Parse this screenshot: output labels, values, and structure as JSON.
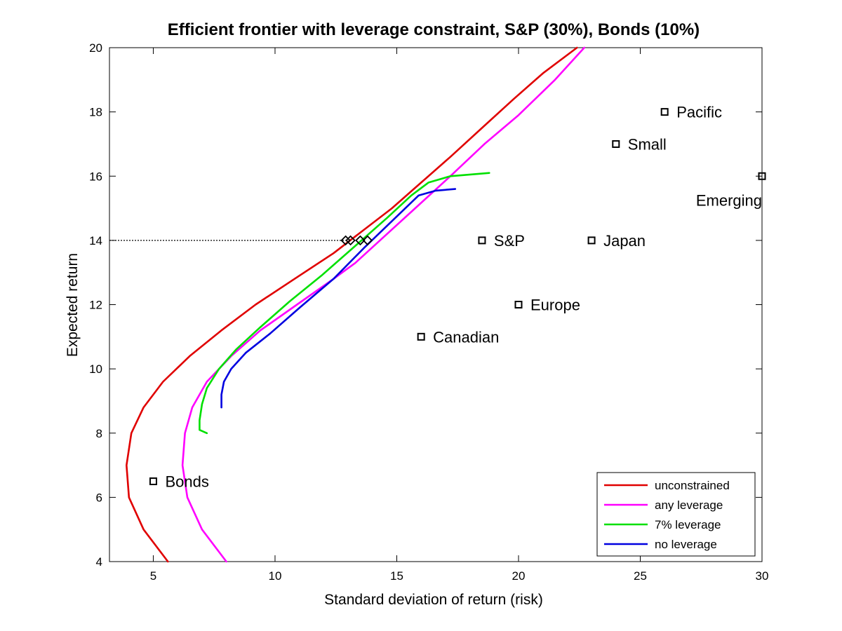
{
  "chart_data": {
    "type": "line",
    "title": "Efficient frontier with leverage constraint, S&P (30%), Bonds (10%)",
    "xlabel": "Standard deviation of return (risk)",
    "ylabel": "Expected return",
    "xlim": [
      3.2,
      30
    ],
    "ylim": [
      4,
      20
    ],
    "xticks": [
      5,
      10,
      15,
      20,
      25,
      30
    ],
    "yticks": [
      4,
      6,
      8,
      10,
      12,
      14,
      16,
      18,
      20
    ],
    "grid": false,
    "legend_position": "bottom-right",
    "target_return": 14,
    "series": [
      {
        "name": "unconstrained",
        "color": "#e00000",
        "x": [
          5.6,
          4.6,
          4.0,
          3.9,
          4.1,
          4.6,
          5.4,
          6.5,
          7.8,
          9.2,
          10.8,
          12.4,
          13.6,
          14.8,
          16.0,
          17.2,
          18.5,
          19.8,
          21.0,
          22.4
        ],
        "y": [
          4.0,
          5.0,
          6.0,
          7.0,
          8.0,
          8.8,
          9.6,
          10.4,
          11.2,
          12.0,
          12.8,
          13.6,
          14.3,
          15.0,
          15.8,
          16.6,
          17.5,
          18.4,
          19.2,
          20.0
        ]
      },
      {
        "name": "any leverage",
        "color": "#ff00ff",
        "x": [
          8.0,
          7.0,
          6.4,
          6.2,
          6.3,
          6.6,
          7.2,
          8.2,
          9.4,
          10.9,
          12.4,
          13.3,
          14.6,
          15.9,
          17.2,
          18.6,
          20.0,
          21.5,
          22.7
        ],
        "y": [
          4.0,
          5.0,
          6.0,
          7.0,
          8.0,
          8.8,
          9.6,
          10.4,
          11.2,
          12.0,
          12.8,
          13.3,
          14.2,
          15.1,
          16.0,
          17.0,
          17.9,
          19.0,
          20.0
        ]
      },
      {
        "name": "7% leverage",
        "color": "#00e000",
        "x": [
          7.2,
          6.9,
          6.9,
          7.0,
          7.2,
          7.7,
          8.4,
          9.4,
          10.6,
          11.9,
          13.4,
          14.6,
          15.6,
          16.3,
          17.2,
          18.8
        ],
        "y": [
          8.0,
          8.1,
          8.4,
          8.9,
          9.4,
          10.0,
          10.6,
          11.3,
          12.1,
          12.9,
          13.9,
          14.7,
          15.4,
          15.8,
          16.0,
          16.1
        ]
      },
      {
        "name": "no leverage",
        "color": "#0000e0",
        "x": [
          7.8,
          7.8,
          7.9,
          8.2,
          8.8,
          9.8,
          11.0,
          12.4,
          13.7,
          14.8,
          15.9,
          16.6,
          17.4
        ],
        "y": [
          8.8,
          9.2,
          9.6,
          10.0,
          10.5,
          11.1,
          11.9,
          12.8,
          13.8,
          14.6,
          15.4,
          15.55,
          15.6
        ]
      }
    ],
    "target_markers": [
      {
        "x": 12.9,
        "y": 14
      },
      {
        "x": 13.1,
        "y": 14
      },
      {
        "x": 13.5,
        "y": 14
      },
      {
        "x": 13.8,
        "y": 14
      }
    ],
    "assets": [
      {
        "name": "Bonds",
        "x": 5,
        "y": 6.5,
        "label_anchor": "right"
      },
      {
        "name": "Canadian",
        "x": 16,
        "y": 11,
        "label_anchor": "right"
      },
      {
        "name": "Europe",
        "x": 20,
        "y": 12,
        "label_anchor": "right"
      },
      {
        "name": "S&P",
        "x": 18.5,
        "y": 14,
        "label_anchor": "right"
      },
      {
        "name": "Japan",
        "x": 23,
        "y": 14,
        "label_anchor": "right"
      },
      {
        "name": "Small",
        "x": 24,
        "y": 17,
        "label_anchor": "right"
      },
      {
        "name": "Pacific",
        "x": 26,
        "y": 18,
        "label_anchor": "right"
      },
      {
        "name": "Emerging",
        "x": 30,
        "y": 16,
        "label_anchor": "below-left"
      }
    ]
  }
}
